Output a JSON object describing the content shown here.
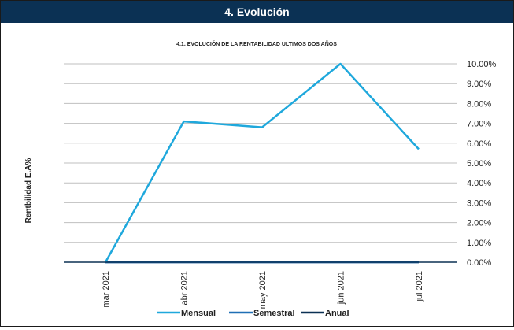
{
  "section": {
    "title": "4. Evolución"
  },
  "chart_data": {
    "type": "line",
    "title": "4.1. EVOLUCIÓN DE LA RENTABILIDAD ULTIMOS DOS AÑOS",
    "ylabel": "Rentbilidad  E.A%",
    "xlabel": "",
    "categories": [
      "mar 2021",
      "abr 2021",
      "may 2021",
      "jun 2021",
      "jul 2021"
    ],
    "ylim": [
      0,
      10
    ],
    "yticks": [
      "0.00%",
      "1.00%",
      "2.00%",
      "3.00%",
      "4.00%",
      "5.00%",
      "6.00%",
      "7.00%",
      "8.00%",
      "9.00%",
      "10.00%"
    ],
    "y_axis_position": "right",
    "grid": true,
    "legend_position": "bottom",
    "series": [
      {
        "name": "Mensual",
        "color": "#1fa8dc",
        "values": [
          0.0,
          7.1,
          6.8,
          10.0,
          5.7
        ]
      },
      {
        "name": "Semestral",
        "color": "#1f6fb5",
        "values": [
          0,
          0,
          0,
          0,
          0
        ]
      },
      {
        "name": "Anual",
        "color": "#0b3154",
        "values": [
          0,
          0,
          0,
          0,
          0
        ]
      }
    ]
  }
}
